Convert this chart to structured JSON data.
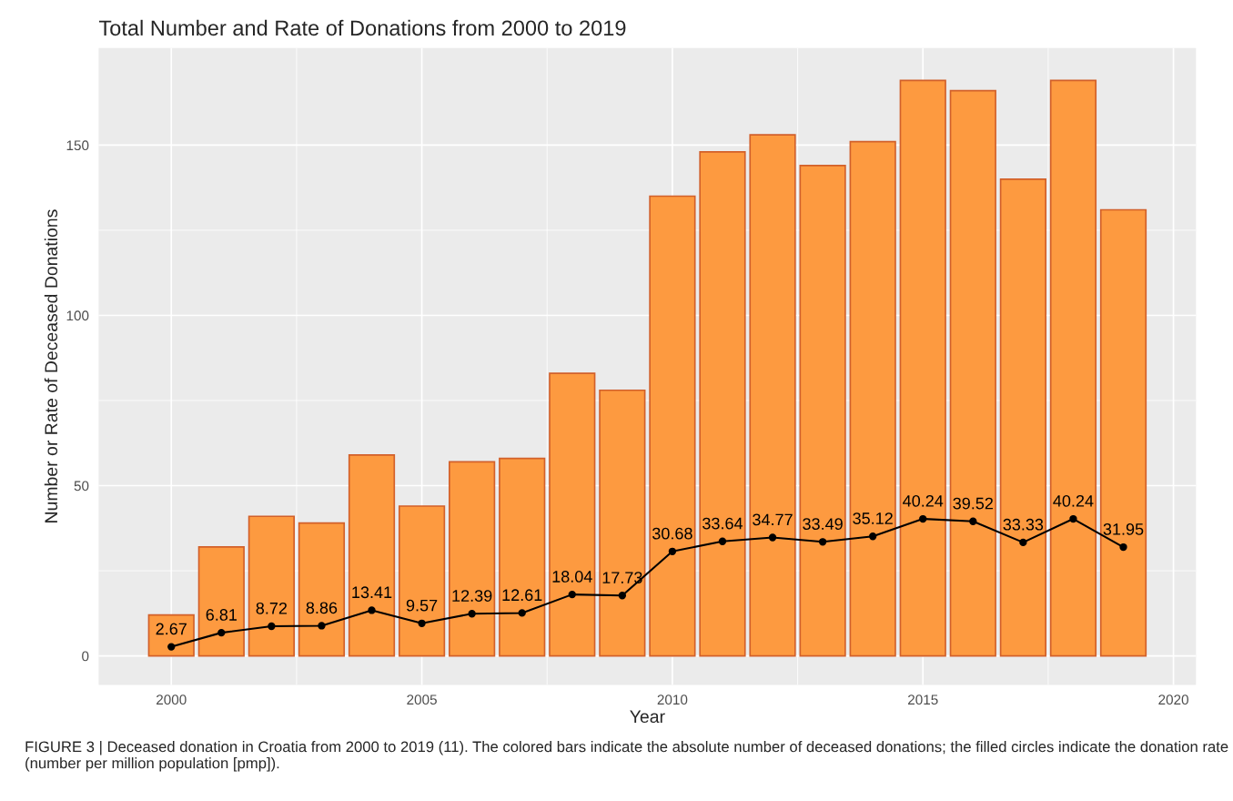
{
  "chart_data": {
    "type": "bar",
    "title": "Total Number and Rate of Donations from 2000 to 2019",
    "xlabel": "Year",
    "ylabel": "Number or Rate of Deceased Donations",
    "x": [
      2000,
      2001,
      2002,
      2003,
      2004,
      2005,
      2006,
      2007,
      2008,
      2009,
      2010,
      2011,
      2012,
      2013,
      2014,
      2015,
      2016,
      2017,
      2018,
      2019
    ],
    "series": [
      {
        "color": "#fd9a40",
        "values": [
          12,
          32,
          41,
          39,
          59,
          44,
          57,
          58,
          83,
          78,
          135,
          148,
          153,
          144,
          151,
          169,
          166,
          140,
          169,
          131
        ]
      },
      {
        "type": "line",
        "color": "#000000",
        "marker": "circle",
        "values": [
          2.67,
          6.81,
          8.72,
          8.86,
          13.41,
          9.57,
          12.39,
          12.61,
          18.04,
          17.73,
          30.68,
          33.64,
          34.77,
          33.49,
          35.12,
          40.24,
          39.52,
          33.33,
          40.24,
          31.95
        ],
        "value_labels": [
          "2.67",
          "6.81",
          "8.72",
          "8.86",
          "13.41",
          "9.57",
          "12.39",
          "12.61",
          "18.04",
          "17.73",
          "30.68",
          "33.64",
          "34.77",
          "33.49",
          "35.12",
          "40.24",
          "39.52",
          "33.33",
          "40.24",
          "31.95"
        ]
      }
    ],
    "xlim": [
      1998.55,
      2020.45
    ],
    "xticks": [
      2000,
      2005,
      2010,
      2015,
      2020
    ],
    "ylim": [
      -8.5,
      178.5
    ],
    "yticks": [
      0,
      50,
      100,
      150
    ],
    "grid": true,
    "legend": false,
    "annotations": [
      "FIGURE 3 | Deceased donation in Croatia from 2000 to 2019 (11). The colored bars indicate the absolute number of deceased donations; the filled circles indicate the donation rate (number per million population [pmp])."
    ]
  }
}
